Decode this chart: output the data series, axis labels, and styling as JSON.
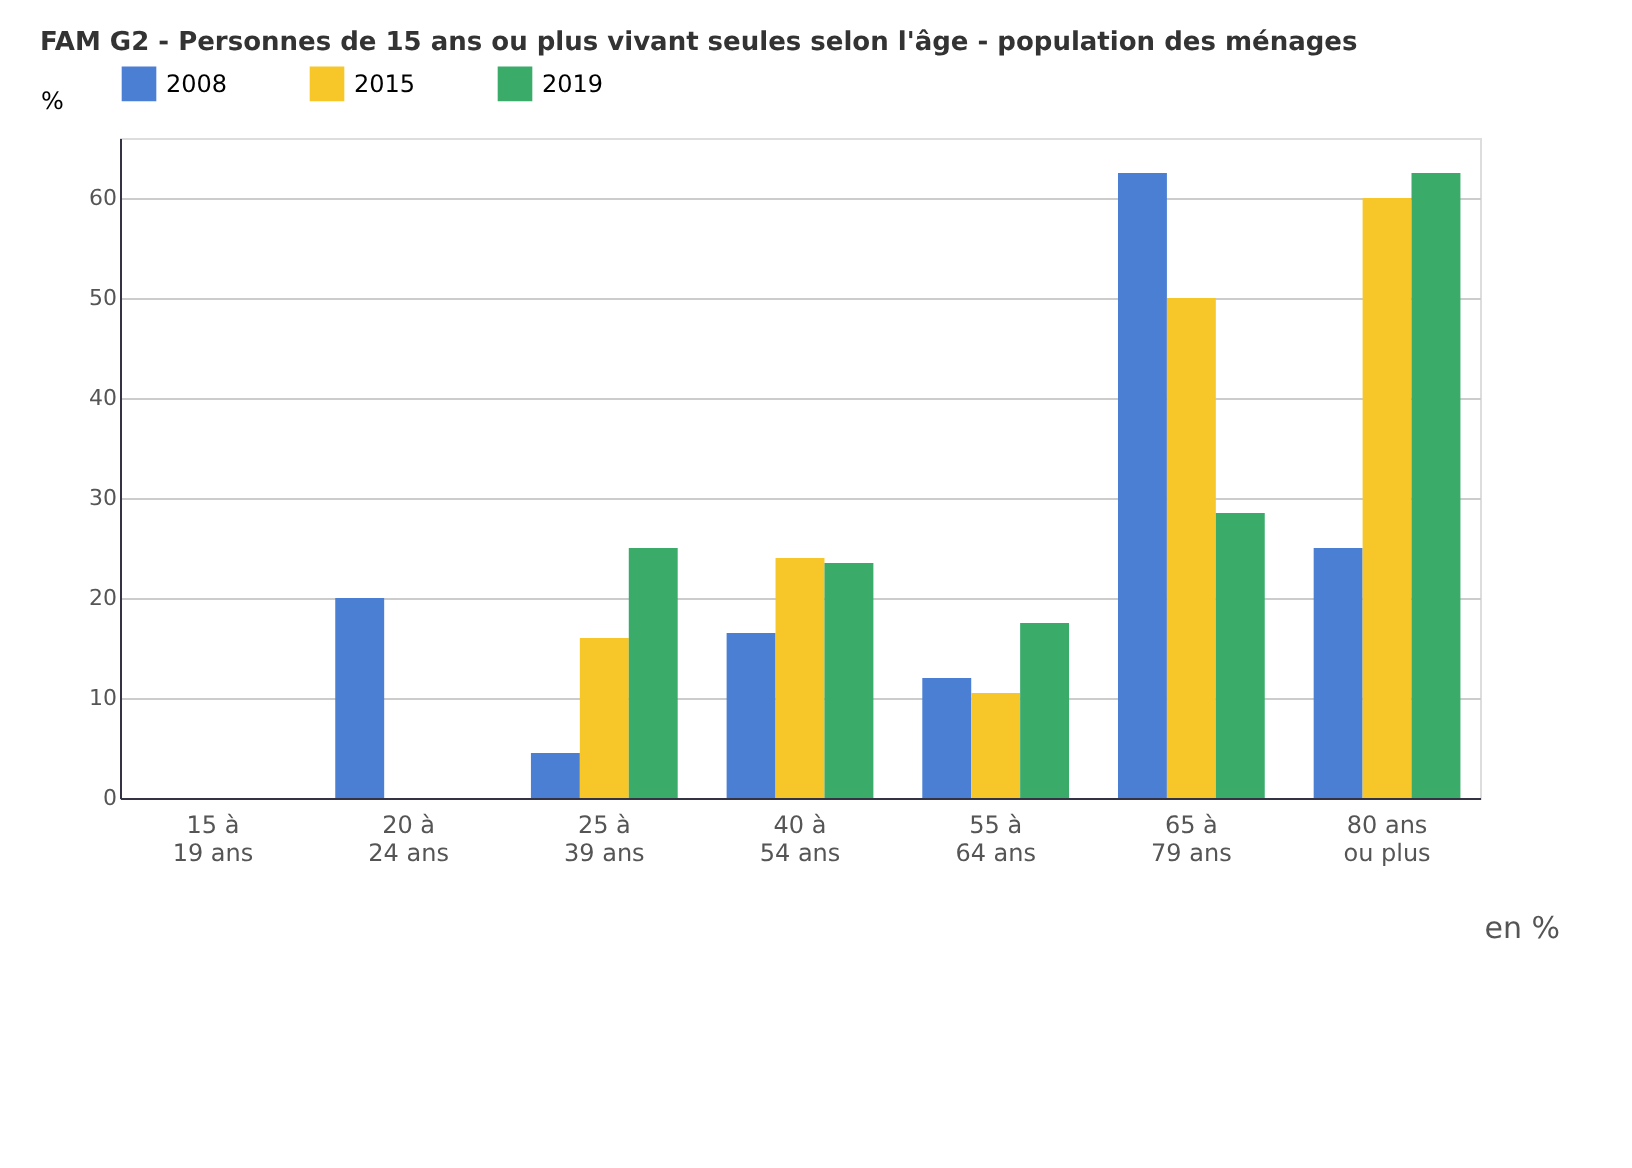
{
  "chart_data": {
    "type": "bar",
    "title": "FAM G2 - Personnes de 15 ans ou plus vivant seules selon l'âge - population des ménages",
    "categories": [
      "15 à\n19 ans",
      "20 à\n24 ans",
      "25 à\n39 ans",
      "40 à\n54 ans",
      "55 à\n64 ans",
      "65 à\n79 ans",
      "80 ans\nou plus"
    ],
    "series": [
      {
        "name": "2008",
        "color": "#4a7fd4",
        "values": [
          0,
          20,
          4.5,
          16.5,
          12,
          62.5,
          25
        ]
      },
      {
        "name": "2015",
        "color": "#f7c72a",
        "values": [
          0,
          0,
          16,
          24,
          10.5,
          50,
          60
        ]
      },
      {
        "name": "2019",
        "color": "#3bab6a",
        "values": [
          0,
          0,
          25,
          23.5,
          17.5,
          28.5,
          62.5
        ]
      }
    ],
    "ylabel": "%",
    "ylim": [
      0,
      66
    ],
    "yticks": [
      0,
      10,
      20,
      30,
      40,
      50,
      60
    ],
    "grid": "y",
    "legend": "top",
    "annotations": [
      "en %"
    ]
  }
}
